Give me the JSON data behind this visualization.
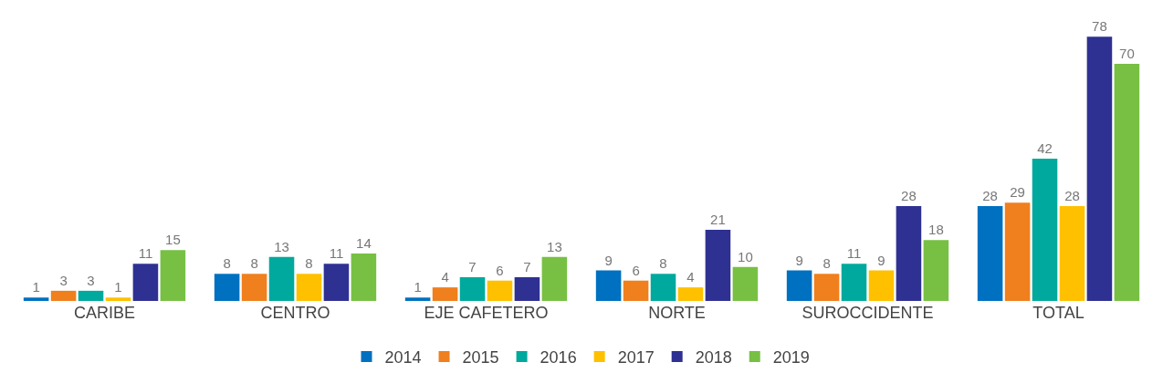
{
  "chart_data": {
    "type": "bar",
    "categories": [
      "CARIBE",
      "CENTRO",
      "EJE CAFETERO",
      "NORTE",
      "SUROCCIDENTE",
      "TOTAL"
    ],
    "series": [
      {
        "name": "2014",
        "color": "#0070c0",
        "values": [
          1,
          8,
          1,
          9,
          9,
          28
        ]
      },
      {
        "name": "2015",
        "color": "#f07f1e",
        "values": [
          3,
          8,
          4,
          6,
          8,
          29
        ]
      },
      {
        "name": "2016",
        "color": "#00a99d",
        "values": [
          3,
          13,
          7,
          8,
          11,
          42
        ]
      },
      {
        "name": "2017",
        "color": "#ffc000",
        "values": [
          1,
          8,
          6,
          4,
          9,
          28
        ]
      },
      {
        "name": "2018",
        "color": "#2e3192",
        "values": [
          11,
          11,
          7,
          21,
          28,
          78
        ]
      },
      {
        "name": "2019",
        "color": "#77c043",
        "values": [
          15,
          14,
          13,
          10,
          18,
          70
        ]
      }
    ],
    "data_labels": true,
    "legend": "bottom",
    "grid": false,
    "tick_labels": "x"
  }
}
